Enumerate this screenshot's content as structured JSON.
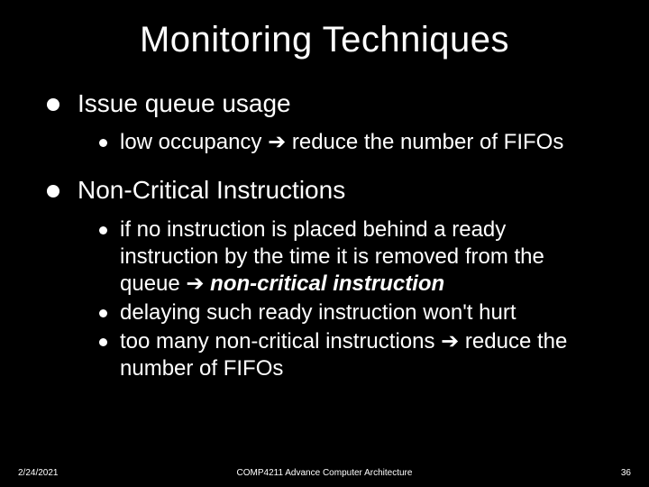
{
  "colors": {
    "background": "#000000",
    "text": "#ffffff",
    "bullet": "#ffffff"
  },
  "typography": {
    "title_fontsize": 40,
    "level1_fontsize": 28,
    "level2_fontsize": 24,
    "footer_fontsize": 10,
    "font_family": "Arial"
  },
  "title": "Monitoring Techniques",
  "points": {
    "p1_text": "Issue queue usage",
    "p1_sub1_pre": " low occupancy ",
    "p1_sub1_arrow": "➔",
    "p1_sub1_post": " reduce the number of FIFOs",
    "p2_text": "Non-Critical Instructions",
    "p2_sub1_pre": " if no instruction is placed behind a ready instruction by the time it is removed from the queue ",
    "p2_sub1_arrow": "➔",
    "p2_sub1_emph": " non-critical instruction",
    "p2_sub2": " delaying such ready instruction won't hurt",
    "p2_sub3_pre": " too many non-critical instructions ",
    "p2_sub3_arrow": "➔",
    "p2_sub3_post": " reduce the number of FIFOs"
  },
  "footer": {
    "date": "2/24/2021",
    "course": "COMP4211 Advance Computer Architecture",
    "page": "36"
  }
}
